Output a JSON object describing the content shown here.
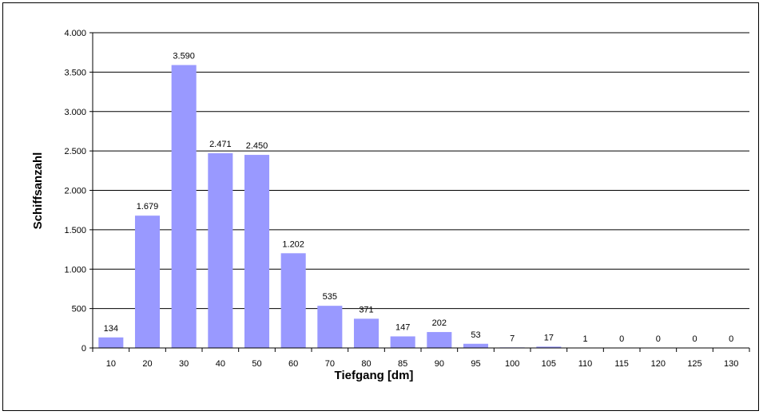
{
  "chart_data": {
    "type": "bar",
    "title": "",
    "xlabel": "Tiefgang [dm]",
    "ylabel": "Schiffsanzahl",
    "categories": [
      "10",
      "20",
      "30",
      "40",
      "50",
      "60",
      "70",
      "80",
      "85",
      "90",
      "95",
      "100",
      "105",
      "110",
      "115",
      "120",
      "125",
      "130"
    ],
    "values": [
      134,
      1679,
      3590,
      2471,
      2450,
      1202,
      535,
      371,
      147,
      202,
      53,
      7,
      17,
      1,
      0,
      0,
      0,
      0
    ],
    "value_labels": [
      "134",
      "1.679",
      "3.590",
      "2.471",
      "2.450",
      "1.202",
      "535",
      "371",
      "147",
      "202",
      "53",
      "7",
      "17",
      "1",
      "0",
      "0",
      "0",
      "0"
    ],
    "ylim": [
      0,
      4000
    ],
    "yticks": [
      0,
      500,
      1000,
      1500,
      2000,
      2500,
      3000,
      3500,
      4000
    ],
    "ytick_labels": [
      "0",
      "500",
      "1.000",
      "1.500",
      "2.000",
      "2.500",
      "3.000",
      "3.500",
      "4.000"
    ],
    "grid": "horizontal",
    "legend": "none",
    "colors": {
      "bar": "#9999ff",
      "grid": "#000000",
      "axis": "#000000"
    }
  }
}
